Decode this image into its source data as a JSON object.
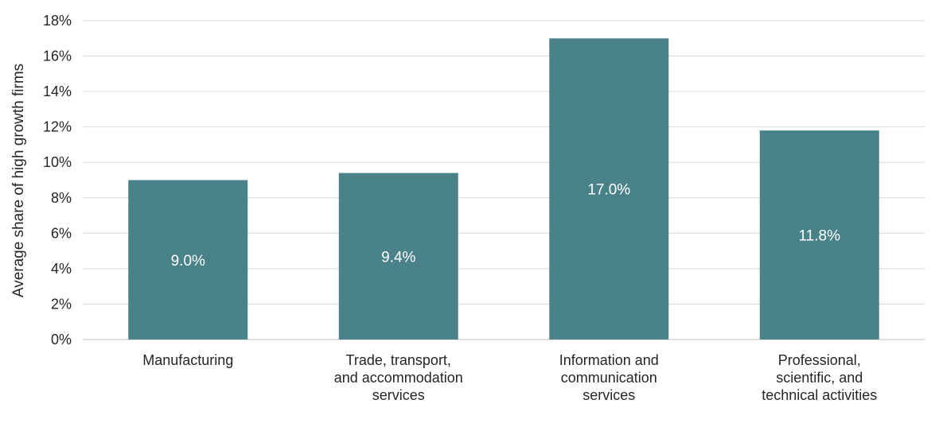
{
  "chart_data": {
    "type": "bar",
    "title": "",
    "xlabel": "",
    "ylabel": "Average share of high growth firms",
    "categories": [
      [
        "Manufacturing"
      ],
      [
        "Trade, transport,",
        "and accommodation",
        "services"
      ],
      [
        "Information and",
        "communication",
        "services"
      ],
      [
        "Professional,",
        "scientific, and",
        "technical activities"
      ]
    ],
    "values": [
      9.0,
      9.4,
      17.0,
      11.8
    ],
    "data_labels": [
      "9.0%",
      "9.4%",
      "17.0%",
      "11.8%"
    ],
    "ylim": [
      0,
      18
    ],
    "yticks": [
      0,
      2,
      4,
      6,
      8,
      10,
      12,
      14,
      16,
      18
    ],
    "ytick_labels": [
      "0%",
      "2%",
      "4%",
      "6%",
      "8%",
      "10%",
      "12%",
      "14%",
      "16%",
      "18%"
    ],
    "grid": true,
    "legend": "none",
    "colors": {
      "bar": "#4a828a"
    }
  }
}
